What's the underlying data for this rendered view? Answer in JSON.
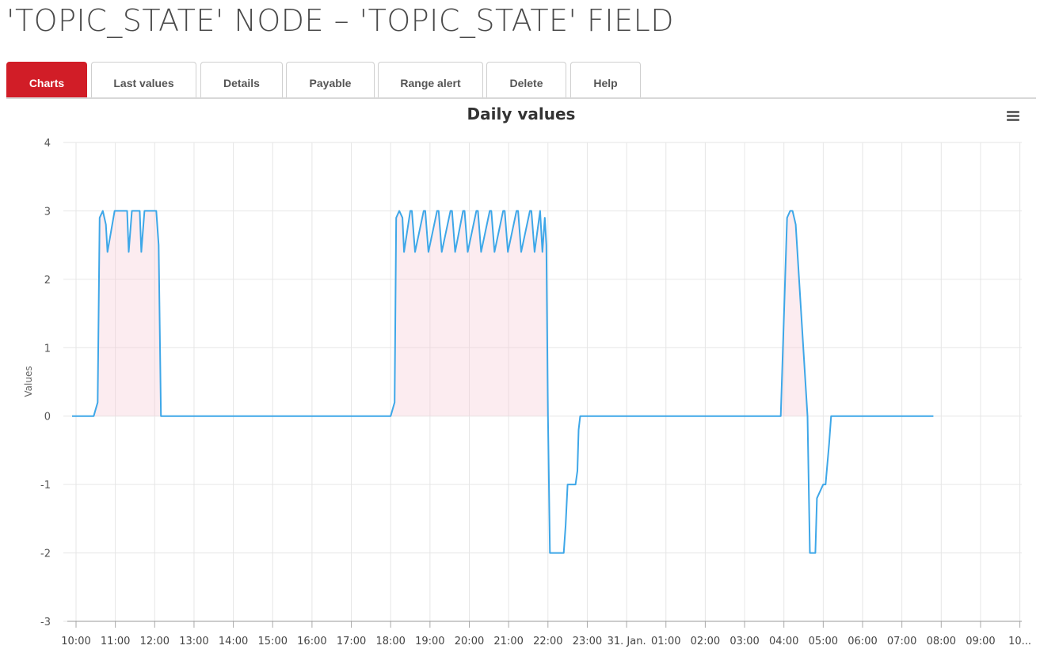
{
  "page": {
    "title": "'TOPIC_STATE' NODE – 'TOPIC_STATE' FIELD"
  },
  "tabs": [
    {
      "label": "Charts",
      "active": true
    },
    {
      "label": "Last values",
      "active": false
    },
    {
      "label": "Details",
      "active": false
    },
    {
      "label": "Payable",
      "active": false
    },
    {
      "label": "Range alert",
      "active": false
    },
    {
      "label": "Delete",
      "active": false
    },
    {
      "label": "Help",
      "active": false
    }
  ],
  "colors": {
    "accent": "#d11d27",
    "series": "#3ea7e8",
    "fill": "#f7c9d3",
    "grid": "#e6e6e6"
  },
  "chart_menu": {
    "icon": "hamburger-menu-icon"
  },
  "chart_data": {
    "type": "line",
    "title": "Daily values",
    "ylabel": "Values",
    "xlabel": "",
    "ylim": [
      -3,
      4
    ],
    "yticks": [
      4,
      3,
      2,
      1,
      0,
      -1,
      -2,
      -3
    ],
    "xticks": [
      "10:00",
      "11:00",
      "12:00",
      "13:00",
      "14:00",
      "15:00",
      "16:00",
      "17:00",
      "18:00",
      "19:00",
      "20:00",
      "21:00",
      "22:00",
      "23:00",
      "31. Jan.",
      "01:00",
      "02:00",
      "03:00",
      "04:00",
      "05:00",
      "06:00",
      "07:00",
      "08:00",
      "09:00",
      "10..."
    ],
    "grid": true,
    "legend": false,
    "series": [
      {
        "x": [
          -0.1,
          0.45,
          0.55,
          0.6,
          0.68,
          0.76,
          0.8,
          0.98,
          1.02,
          1.1,
          1.3,
          1.34,
          1.42,
          1.62,
          1.66,
          1.74,
          1.98,
          2.04,
          2.1,
          2.16,
          6.0,
          8.0,
          8.1,
          8.14,
          8.22,
          8.3,
          8.34,
          8.5,
          8.54,
          8.62,
          8.84,
          8.88,
          8.96,
          9.18,
          9.22,
          9.3,
          9.52,
          9.56,
          9.64,
          9.84,
          9.88,
          9.96,
          10.18,
          10.22,
          10.3,
          10.52,
          10.56,
          10.64,
          10.86,
          10.9,
          10.98,
          11.2,
          11.24,
          11.32,
          11.54,
          11.58,
          11.66,
          11.8,
          11.86,
          11.92,
          11.96,
          12.0,
          12.05,
          12.4,
          12.45,
          12.5,
          12.55,
          12.7,
          12.75,
          12.78,
          12.82,
          12.9,
          13.0,
          16.0,
          17.75,
          17.82,
          17.92,
          18.08,
          18.16,
          18.22,
          18.3,
          18.6,
          18.66,
          18.75,
          18.8,
          18.84,
          19.0,
          19.06,
          19.15,
          19.2,
          21.5,
          21.8
        ],
        "y": [
          0,
          0,
          0.2,
          2.9,
          3,
          2.8,
          2.4,
          3,
          3,
          3,
          3,
          2.4,
          3,
          3,
          2.4,
          3,
          3,
          3,
          2.5,
          0,
          0,
          0,
          0.2,
          2.9,
          3,
          2.9,
          2.4,
          3,
          3,
          2.4,
          3,
          3,
          2.4,
          3,
          3,
          2.4,
          3,
          3,
          2.4,
          3,
          3,
          2.4,
          3,
          3,
          2.4,
          3,
          3,
          2.4,
          3,
          3,
          2.4,
          3,
          3,
          2.4,
          3,
          3,
          2.4,
          3,
          2.4,
          2.9,
          2.5,
          0,
          -2,
          -2,
          -1.6,
          -1,
          -1,
          -1,
          -0.8,
          -0.2,
          0,
          0,
          0,
          0,
          0,
          0,
          0,
          2.9,
          3,
          3,
          2.8,
          0,
          -2,
          -2,
          -2,
          -1.2,
          -1,
          -1,
          -0.4,
          0,
          0,
          0
        ]
      }
    ]
  }
}
